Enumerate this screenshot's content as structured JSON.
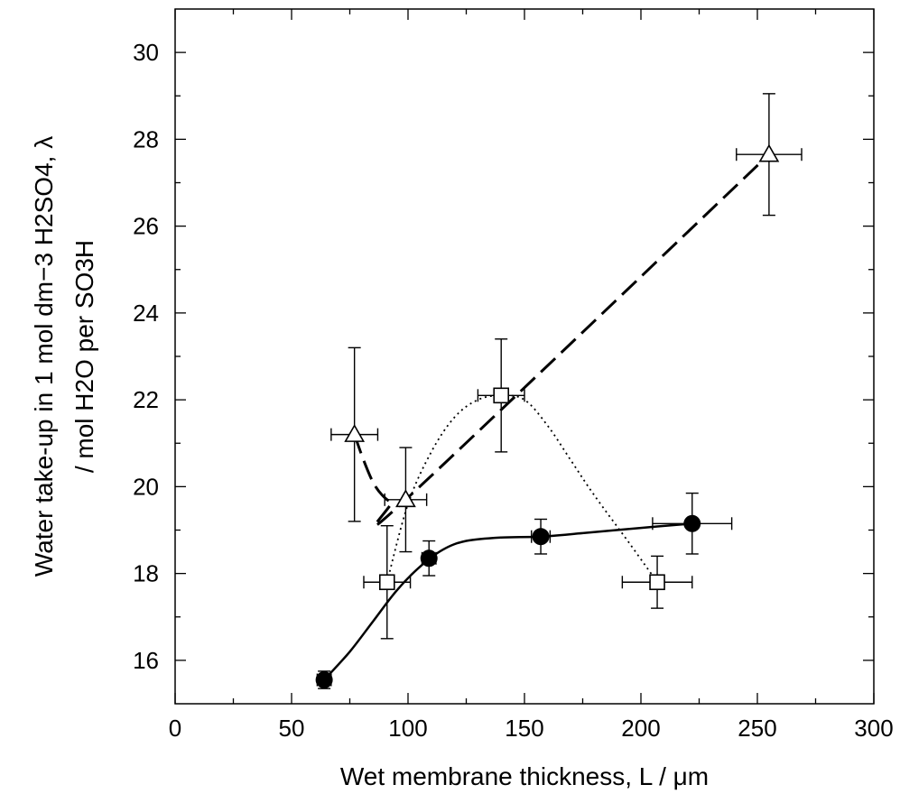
{
  "chart_data": {
    "type": "scatter",
    "xlabel": "Wet membrane thickness, L / μm",
    "ylabel_line1": "Water take-up in 1 mol dm−3 H2SO4, λ",
    "ylabel_line2": "/ mol H2O per SO3H",
    "xlim": [
      0,
      300
    ],
    "ylim": [
      15,
      31
    ],
    "x_ticks": [
      0,
      50,
      100,
      150,
      200,
      250,
      300
    ],
    "y_ticks": [
      16,
      18,
      20,
      22,
      24,
      26,
      28,
      30
    ],
    "grid": false,
    "series": [
      {
        "marker": "filled-circle",
        "line_style": "solid",
        "color": "#000000",
        "points": [
          {
            "x": 64,
            "y": 15.55,
            "xerr": 3,
            "yerr": 0.2
          },
          {
            "x": 109,
            "y": 18.35,
            "xerr": 3,
            "yerr": 0.4
          },
          {
            "x": 157,
            "y": 18.85,
            "xerr": 4,
            "yerr": 0.4
          },
          {
            "x": 222,
            "y": 19.15,
            "xerr": 17,
            "yerr": 0.7
          }
        ],
        "curve": [
          [
            64,
            15.55
          ],
          [
            75,
            16.2
          ],
          [
            85,
            16.9
          ],
          [
            95,
            17.6
          ],
          [
            105,
            18.15
          ],
          [
            115,
            18.55
          ],
          [
            125,
            18.75
          ],
          [
            140,
            18.83
          ],
          [
            157,
            18.85
          ],
          [
            175,
            18.93
          ],
          [
            200,
            19.05
          ],
          [
            222,
            19.15
          ]
        ]
      },
      {
        "marker": "open-triangle",
        "line_style": "dashed",
        "color": "#000000",
        "points": [
          {
            "x": 77,
            "y": 21.2,
            "xerr": 10,
            "yerr": 2.0
          },
          {
            "x": 99,
            "y": 19.7,
            "xerr": 9,
            "yerr": 1.2
          },
          {
            "x": 255,
            "y": 27.65,
            "xerr": 14,
            "yerr": 1.4
          }
        ],
        "curve": [
          [
            77,
            21.2
          ],
          [
            81,
            20.6
          ],
          [
            85,
            20.1
          ],
          [
            89,
            19.8
          ],
          [
            93,
            19.65
          ],
          [
            99,
            19.7
          ],
          [
            255,
            27.65
          ]
        ]
      },
      {
        "marker": "open-square",
        "line_style": "dotted",
        "color": "#000000",
        "points": [
          {
            "x": 91,
            "y": 17.8,
            "xerr": 10,
            "yerr": 1.3
          },
          {
            "x": 140,
            "y": 22.1,
            "xerr": 10,
            "yerr": 1.3
          },
          {
            "x": 207,
            "y": 17.8,
            "xerr": 15,
            "yerr": 0.6
          }
        ],
        "curve": [
          [
            91,
            17.8
          ],
          [
            100,
            19.6
          ],
          [
            110,
            20.8
          ],
          [
            120,
            21.6
          ],
          [
            130,
            22.0
          ],
          [
            140,
            22.1
          ],
          [
            150,
            22.0
          ],
          [
            160,
            21.4
          ],
          [
            170,
            20.6
          ],
          [
            180,
            19.8
          ],
          [
            195,
            18.7
          ],
          [
            207,
            17.8
          ]
        ]
      }
    ]
  }
}
